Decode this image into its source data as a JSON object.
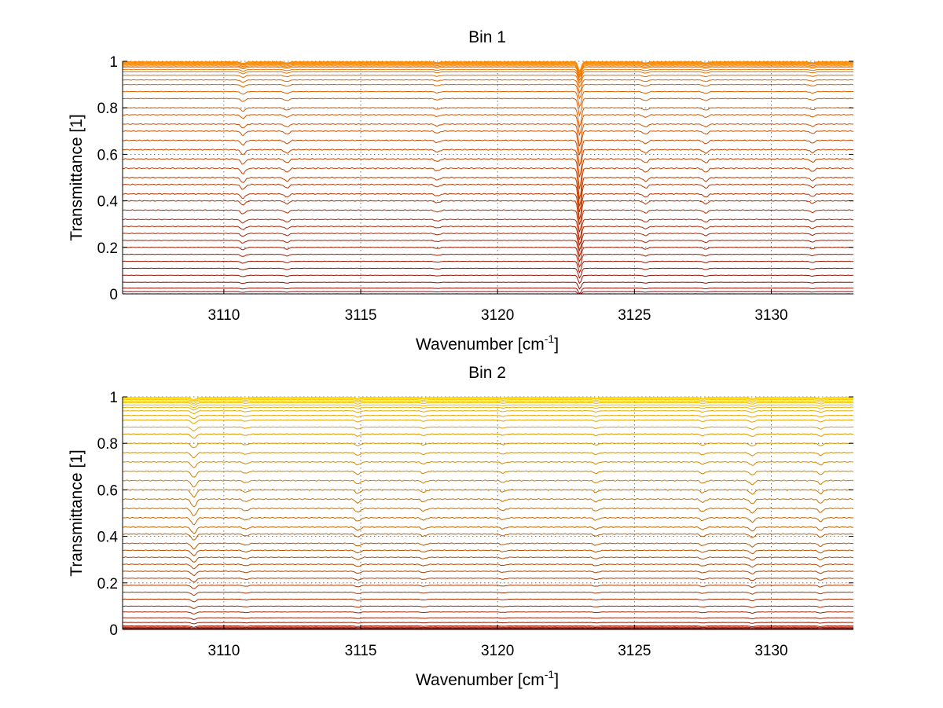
{
  "chart_data": [
    {
      "type": "line",
      "title": "Bin 1",
      "xlabel": "Wavenumber [cm",
      "xlabel_sup": "-1",
      "xlabel_end": "]",
      "ylabel": "Transmittance [1]",
      "xlim": [
        3106.3,
        3133.0
      ],
      "ylim": [
        0,
        1
      ],
      "xticks": [
        3110,
        3115,
        3120,
        3125,
        3130
      ],
      "xtick_labels": [
        "3110",
        "3115",
        "3120",
        "3125",
        "3130"
      ],
      "yticks": [
        0,
        0.2,
        0.4,
        0.6,
        0.8,
        1
      ],
      "ytick_labels": [
        "0",
        "0.2",
        "0.4",
        "0.6",
        "0.8",
        "1"
      ],
      "grid": true,
      "colormap": [
        "#8b0000",
        "#ff8c00"
      ],
      "absorption_features": [
        {
          "x": 3110.7,
          "depth": 0.02
        },
        {
          "x": 3112.3,
          "depth": 0.015
        },
        {
          "x": 3117.8,
          "depth": 0.01
        },
        {
          "x": 3123.0,
          "depth": 0.12
        },
        {
          "x": 3125.4,
          "depth": 0.015
        },
        {
          "x": 3127.6,
          "depth": 0.015
        },
        {
          "x": 3131.5,
          "depth": 0.012
        }
      ],
      "baselines": [
        0.0,
        0.01,
        0.025,
        0.05,
        0.08,
        0.11,
        0.14,
        0.17,
        0.2,
        0.23,
        0.26,
        0.29,
        0.32,
        0.36,
        0.4,
        0.43,
        0.47,
        0.5,
        0.54,
        0.58,
        0.62,
        0.66,
        0.7,
        0.73,
        0.77,
        0.8,
        0.84,
        0.87,
        0.9,
        0.92,
        0.94,
        0.955,
        0.965,
        0.975,
        0.98,
        0.985,
        0.99,
        0.993,
        0.996,
        0.998
      ]
    },
    {
      "type": "line",
      "title": "Bin 2",
      "xlabel": "Wavenumber [cm",
      "xlabel_sup": "-1",
      "xlabel_end": "]",
      "ylabel": "Transmittance [1]",
      "xlim": [
        3106.3,
        3133.0
      ],
      "ylim": [
        0,
        1
      ],
      "xticks": [
        3110,
        3115,
        3120,
        3125,
        3130
      ],
      "xtick_labels": [
        "3110",
        "3115",
        "3120",
        "3125",
        "3130"
      ],
      "yticks": [
        0,
        0.2,
        0.4,
        0.6,
        0.8,
        1
      ],
      "ytick_labels": [
        "0",
        "0.2",
        "0.4",
        "0.6",
        "0.8",
        "1"
      ],
      "grid": true,
      "colormap": [
        "#8b0000",
        "#ffd700"
      ],
      "absorption_features": [
        {
          "x": 3108.9,
          "depth": 0.03
        },
        {
          "x": 3110.8,
          "depth": 0.01
        },
        {
          "x": 3114.9,
          "depth": 0.015
        },
        {
          "x": 3117.3,
          "depth": 0.01
        },
        {
          "x": 3120.2,
          "depth": 0.008
        },
        {
          "x": 3123.6,
          "depth": 0.01
        },
        {
          "x": 3127.5,
          "depth": 0.012
        },
        {
          "x": 3129.3,
          "depth": 0.018
        },
        {
          "x": 3131.8,
          "depth": 0.015
        }
      ],
      "baselines": [
        0.0,
        0.003,
        0.006,
        0.01,
        0.015,
        0.03,
        0.05,
        0.075,
        0.1,
        0.13,
        0.16,
        0.19,
        0.22,
        0.25,
        0.28,
        0.31,
        0.34,
        0.37,
        0.41,
        0.44,
        0.48,
        0.52,
        0.56,
        0.6,
        0.64,
        0.68,
        0.72,
        0.76,
        0.8,
        0.84,
        0.87,
        0.9,
        0.92,
        0.94,
        0.955,
        0.965,
        0.975,
        0.982,
        0.988,
        0.993,
        0.996,
        0.998
      ]
    }
  ]
}
